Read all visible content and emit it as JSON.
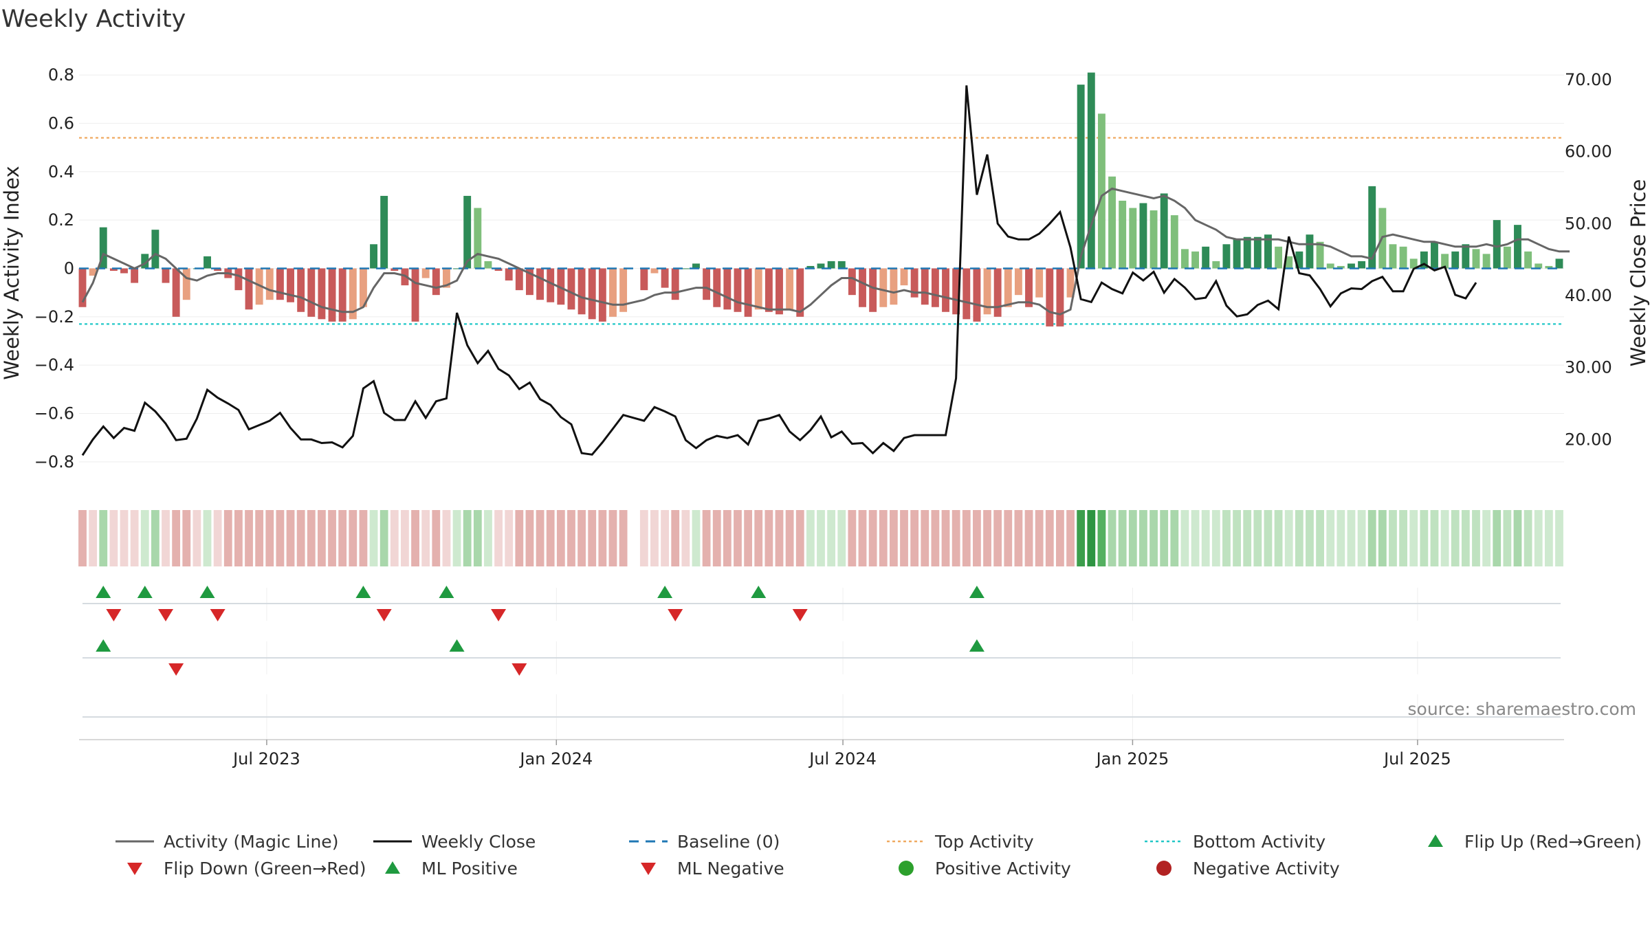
{
  "chart_data": {
    "type": "bar",
    "title": "Weekly Activity",
    "ylabel": "Weekly Activity Index",
    "y2label": "Weekly Close Price",
    "source": "source: sharemaestro.com",
    "ylim": [
      -0.88,
      0.84
    ],
    "y2lim": [
      14.2,
      72.0
    ],
    "y_ticks": [
      "0.8",
      "0.6",
      "0.4",
      "0.2",
      "0",
      "−0.2",
      "−0.4",
      "−0.6",
      "−0.8"
    ],
    "y2_ticks": [
      "70.00",
      "60.00",
      "50.00",
      "40.00",
      "30.00",
      "20.00"
    ],
    "x_start": "2023-03-06",
    "x_end": "2025-09-29",
    "x_ticks": [
      {
        "date": "2023-07-01",
        "label": "Jul 2023"
      },
      {
        "date": "2024-01-01",
        "label": "Jan 2024"
      },
      {
        "date": "2024-07-01",
        "label": "Jul 2024"
      },
      {
        "date": "2025-01-01",
        "label": "Jan 2025"
      },
      {
        "date": "2025-07-01",
        "label": "Jul 2025"
      }
    ],
    "top_activity": 0.54,
    "bottom_activity": -0.23,
    "baseline": 0,
    "activity": [
      -0.16,
      -0.03,
      0.17,
      -0.01,
      -0.02,
      -0.06,
      0.06,
      0.16,
      -0.06,
      -0.2,
      -0.13,
      0.0,
      0.05,
      -0.01,
      -0.04,
      -0.09,
      -0.17,
      -0.15,
      -0.13,
      -0.13,
      -0.14,
      -0.18,
      -0.2,
      -0.21,
      -0.22,
      -0.22,
      -0.21,
      -0.16,
      0.1,
      0.3,
      -0.01,
      -0.07,
      -0.22,
      -0.04,
      -0.11,
      -0.08,
      0.0,
      0.3,
      0.25,
      0.03,
      -0.01,
      -0.05,
      -0.09,
      -0.11,
      -0.13,
      -0.14,
      -0.15,
      -0.17,
      -0.19,
      -0.21,
      -0.22,
      -0.2,
      -0.18,
      null,
      -0.09,
      -0.02,
      -0.08,
      -0.13,
      0.0,
      0.02,
      -0.13,
      -0.16,
      -0.17,
      -0.18,
      -0.2,
      -0.17,
      -0.18,
      -0.19,
      -0.17,
      -0.2,
      0.01,
      0.02,
      0.03,
      0.03,
      -0.11,
      -0.16,
      -0.18,
      -0.16,
      -0.15,
      -0.07,
      -0.12,
      -0.15,
      -0.16,
      -0.18,
      -0.19,
      -0.21,
      -0.22,
      -0.19,
      -0.2,
      -0.16,
      -0.11,
      -0.16,
      -0.12,
      -0.24,
      -0.24,
      -0.12,
      0.76,
      0.81,
      0.64,
      0.38,
      0.28,
      0.25,
      0.27,
      0.24,
      0.31,
      0.22,
      0.08,
      0.07,
      0.09,
      0.03,
      0.1,
      0.12,
      0.13,
      0.13,
      0.14,
      0.09,
      0.05,
      0.07,
      0.14,
      0.11,
      0.02,
      0.01,
      0.02,
      0.03,
      0.34,
      0.25,
      0.1,
      0.09,
      0.04,
      0.07,
      0.11,
      0.06,
      0.07,
      0.1,
      0.08,
      0.06,
      0.2,
      0.09,
      0.18,
      0.07,
      0.02,
      0.01,
      0.04
    ],
    "magic_line": [
      -0.14,
      -0.06,
      0.06,
      0.04,
      0.02,
      0.0,
      0.02,
      0.06,
      0.04,
      0.0,
      -0.04,
      -0.05,
      -0.03,
      -0.02,
      -0.02,
      -0.03,
      -0.05,
      -0.07,
      -0.09,
      -0.1,
      -0.11,
      -0.12,
      -0.14,
      -0.16,
      -0.17,
      -0.18,
      -0.18,
      -0.16,
      -0.08,
      -0.02,
      -0.02,
      -0.03,
      -0.06,
      -0.07,
      -0.08,
      -0.07,
      -0.05,
      0.03,
      0.06,
      0.05,
      0.04,
      0.02,
      0.0,
      -0.02,
      -0.04,
      -0.06,
      -0.08,
      -0.1,
      -0.12,
      -0.13,
      -0.14,
      -0.15,
      -0.15,
      -0.14,
      -0.13,
      -0.11,
      -0.1,
      -0.1,
      -0.09,
      -0.08,
      -0.08,
      -0.1,
      -0.12,
      -0.14,
      -0.15,
      -0.16,
      -0.17,
      -0.17,
      -0.17,
      -0.18,
      -0.15,
      -0.11,
      -0.07,
      -0.04,
      -0.04,
      -0.06,
      -0.08,
      -0.09,
      -0.1,
      -0.09,
      -0.1,
      -0.1,
      -0.11,
      -0.12,
      -0.13,
      -0.14,
      -0.15,
      -0.16,
      -0.16,
      -0.15,
      -0.14,
      -0.14,
      -0.15,
      -0.18,
      -0.19,
      -0.17,
      0.05,
      0.18,
      0.3,
      0.33,
      0.32,
      0.31,
      0.3,
      0.29,
      0.3,
      0.28,
      0.25,
      0.2,
      0.18,
      0.16,
      0.13,
      0.12,
      0.12,
      0.12,
      0.12,
      0.12,
      0.11,
      0.1,
      0.1,
      0.1,
      0.09,
      0.07,
      0.05,
      0.05,
      0.04,
      0.13,
      0.14,
      0.13,
      0.12,
      0.11,
      0.11,
      0.1,
      0.09,
      0.09,
      0.09,
      0.1,
      0.09,
      0.1,
      0.12,
      0.12,
      0.1,
      0.08,
      0.07,
      0.07
    ],
    "close": [
      17.8,
      20.0,
      21.8,
      20.2,
      21.6,
      21.2,
      25.1,
      23.9,
      22.2,
      19.9,
      20.1,
      22.9,
      26.9,
      25.8,
      25.0,
      24.1,
      21.4,
      22.0,
      22.6,
      23.7,
      21.6,
      20.0,
      20.0,
      19.5,
      19.6,
      18.9,
      20.5,
      27.1,
      28.1,
      23.7,
      22.7,
      22.7,
      25.3,
      23.0,
      25.3,
      25.7,
      37.6,
      33.1,
      30.6,
      32.3,
      29.8,
      28.9,
      27.0,
      27.9,
      25.6,
      24.8,
      23.1,
      22.1,
      18.1,
      17.9,
      19.6,
      21.5,
      23.4,
      23.0,
      22.6,
      24.5,
      23.9,
      23.2,
      19.9,
      18.8,
      19.9,
      20.5,
      20.2,
      20.6,
      19.3,
      22.6,
      22.9,
      23.4,
      21.1,
      19.9,
      21.3,
      23.2,
      20.3,
      21.1,
      19.4,
      19.5,
      18.1,
      19.5,
      18.4,
      20.2,
      20.6,
      20.6,
      20.6,
      20.6,
      28.5,
      69.2,
      54.0,
      59.6,
      50.0,
      48.2,
      47.8,
      47.8,
      48.6,
      50.0,
      51.6,
      46.7,
      39.5,
      39.1,
      41.8,
      40.9,
      40.3,
      43.2,
      42.1,
      43.3,
      40.4,
      42.3,
      41.1,
      39.5,
      39.7,
      42.0,
      38.6,
      37.1,
      37.4,
      38.7,
      39.3,
      38.1,
      48.2,
      43.1,
      42.8,
      40.9,
      38.5,
      40.3,
      41.0,
      40.9,
      42.0,
      42.6,
      40.6,
      40.6,
      43.7,
      44.4,
      43.5,
      44.0,
      40.1,
      39.6,
      41.8
    ],
    "heatmap": [
      "#e4b1ae",
      "#f1d6d5",
      "#a9d7ab",
      "#f1d6d5",
      "#f1d6d5",
      "#f1d6d5",
      "#cee9cf",
      "#a9d7ab",
      "#f1d6d5",
      "#e4b1ae",
      "#e4b1ae",
      "#f1d6d5",
      "#cee9cf",
      "#f1d6d5",
      "#e4b1ae",
      "#e4b1ae",
      "#e4b1ae",
      "#e4b1ae",
      "#e4b1ae",
      "#e4b1ae",
      "#e4b1ae",
      "#e4b1ae",
      "#e4b1ae",
      "#e4b1ae",
      "#e4b1ae",
      "#e4b1ae",
      "#e4b1ae",
      "#e4b1ae",
      "#cee9cf",
      "#a9d7ab",
      "#f1d6d5",
      "#f1d6d5",
      "#e4b1ae",
      "#f1d6d5",
      "#e4b1ae",
      "#f1d6d5",
      "#cee9cf",
      "#a9d7ab",
      "#a9d7ab",
      "#cee9cf",
      "#f1d6d5",
      "#f1d6d5",
      "#e4b1ae",
      "#e4b1ae",
      "#e4b1ae",
      "#e4b1ae",
      "#e4b1ae",
      "#e4b1ae",
      "#e4b1ae",
      "#e4b1ae",
      "#e4b1ae",
      "#e4b1ae",
      "#e4b1ae",
      null,
      "#f1d6d5",
      "#f1d6d5",
      "#f1d6d5",
      "#e4b1ae",
      "#f1d6d5",
      "#cee9cf",
      "#e4b1ae",
      "#e4b1ae",
      "#e4b1ae",
      "#e4b1ae",
      "#e4b1ae",
      "#e4b1ae",
      "#e4b1ae",
      "#e4b1ae",
      "#e4b1ae",
      "#e4b1ae",
      "#cee9cf",
      "#cee9cf",
      "#cee9cf",
      "#cee9cf",
      "#e4b1ae",
      "#e4b1ae",
      "#e4b1ae",
      "#e4b1ae",
      "#e4b1ae",
      "#e4b1ae",
      "#e4b1ae",
      "#e4b1ae",
      "#e4b1ae",
      "#e4b1ae",
      "#e4b1ae",
      "#e4b1ae",
      "#e4b1ae",
      "#e4b1ae",
      "#e4b1ae",
      "#e4b1ae",
      "#e4b1ae",
      "#e4b1ae",
      "#e4b1ae",
      "#e4b1ae",
      "#e4b1ae",
      "#e4b1ae",
      "#3c9e4c",
      "#2e9442",
      "#54b060",
      "#a9d7ab",
      "#a9d7ab",
      "#a9d7ab",
      "#a9d7ab",
      "#a9d7ab",
      "#a9d7ab",
      "#a9d7ab",
      "#cee9cf",
      "#cee9cf",
      "#cee9cf",
      "#cee9cf",
      "#bfe2c0",
      "#bfe2c0",
      "#bfe2c0",
      "#bfe2c0",
      "#bfe2c0",
      "#bfe2c0",
      "#cee9cf",
      "#bfe2c0",
      "#bfe2c0",
      "#bfe2c0",
      "#cee9cf",
      "#cee9cf",
      "#cee9cf",
      "#cee9cf",
      "#a9d7ab",
      "#a9d7ab",
      "#bfe2c0",
      "#bfe2c0",
      "#cee9cf",
      "#bfe2c0",
      "#bfe2c0",
      "#cee9cf",
      "#bfe2c0",
      "#bfe2c0",
      "#bfe2c0",
      "#cee9cf",
      "#a9d7ab",
      "#bfe2c0",
      "#a9d7ab",
      "#bfe2c0",
      "#cee9cf",
      "#cee9cf",
      "#cee9cf"
    ],
    "flip_up": [
      2,
      6,
      12,
      27,
      35,
      56,
      65,
      86
    ],
    "flip_down": [
      3,
      8,
      13,
      29,
      40,
      57,
      69
    ],
    "ml_positive": [
      2,
      36,
      86
    ],
    "ml_negative": [
      9,
      42
    ],
    "legend": [
      {
        "label": "Activity (Magic Line)",
        "kind": "line",
        "color": "#666666"
      },
      {
        "label": "Weekly Close",
        "kind": "line",
        "color": "#111111"
      },
      {
        "label": "Baseline (0)",
        "kind": "dash",
        "color": "#1f77b4"
      },
      {
        "label": "Top Activity",
        "kind": "dot",
        "color": "#f0a960"
      },
      {
        "label": "Bottom Activity",
        "kind": "dot",
        "color": "#22c7c7"
      },
      {
        "label": "Flip Up (Red→Green)",
        "kind": "tri-up",
        "color": "#1f9a40"
      },
      {
        "label": "Flip Down (Green→Red)",
        "kind": "tri-down",
        "color": "#d62728"
      },
      {
        "label": "ML Positive",
        "kind": "tri-up",
        "color": "#1f9a40"
      },
      {
        "label": "ML Negative",
        "kind": "tri-down",
        "color": "#d62728"
      },
      {
        "label": "Positive Activity",
        "kind": "circle",
        "color": "#2ca02c"
      },
      {
        "label": "Negative Activity",
        "kind": "circle",
        "color": "#b22222"
      }
    ],
    "colors": {
      "pos_dark": "#2e8b57",
      "pos_light": "#7fbf7b",
      "neg_dark": "#c85a5a",
      "neg_light": "#e8a080",
      "magic_line": "#666666",
      "close_line": "#111111",
      "baseline": "#1f77b4",
      "top": "#f0a960",
      "bottom": "#22c7c7",
      "tri_up": "#1f9a40",
      "tri_down": "#d62728"
    }
  }
}
